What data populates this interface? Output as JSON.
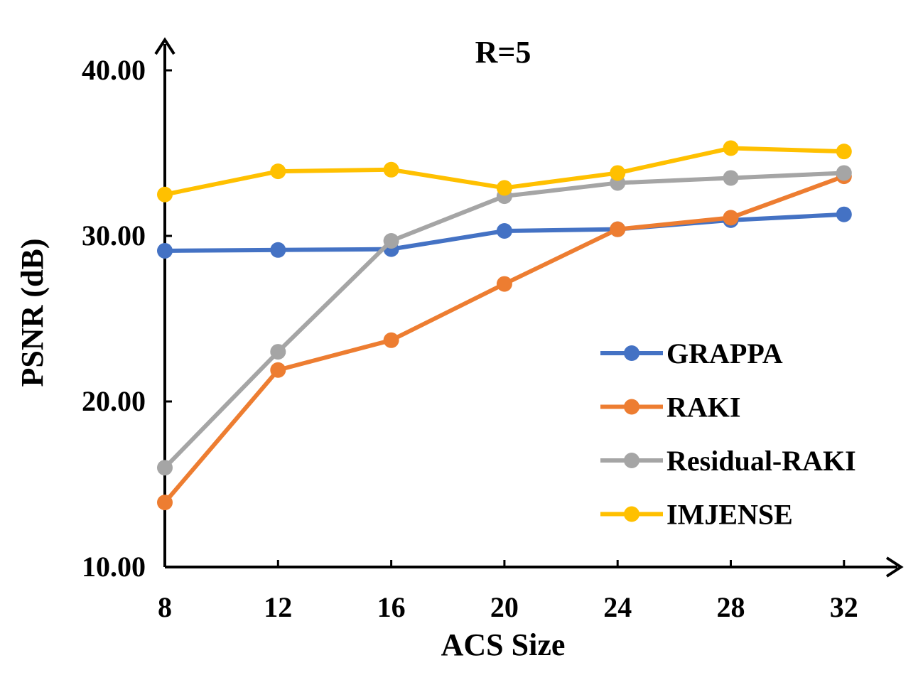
{
  "chart_data": {
    "type": "line",
    "title": "R=5",
    "xlabel": "ACS Size",
    "ylabel": "PSNR (dB)",
    "categories": [
      "8",
      "12",
      "16",
      "20",
      "24",
      "28",
      "32"
    ],
    "ylim": [
      10,
      40
    ],
    "yticks": [
      "10.00",
      "20.00",
      "30.00",
      "40.00"
    ],
    "legend_position": "right-middle",
    "series": [
      {
        "name": "GRAPPA",
        "color": "#4472C4",
        "values": [
          29.1,
          29.15,
          29.2,
          30.3,
          30.4,
          30.95,
          31.3
        ]
      },
      {
        "name": "RAKI",
        "color": "#ED7D31",
        "values": [
          13.9,
          21.9,
          23.7,
          27.1,
          30.4,
          31.1,
          33.6
        ]
      },
      {
        "name": "Residual-RAKI",
        "color": "#A5A5A5",
        "values": [
          16.0,
          23.0,
          29.7,
          32.4,
          33.2,
          33.5,
          33.8
        ]
      },
      {
        "name": "IMJENSE",
        "color": "#FFC000",
        "values": [
          32.5,
          33.9,
          34.0,
          32.9,
          33.8,
          35.3,
          35.1
        ]
      }
    ]
  }
}
